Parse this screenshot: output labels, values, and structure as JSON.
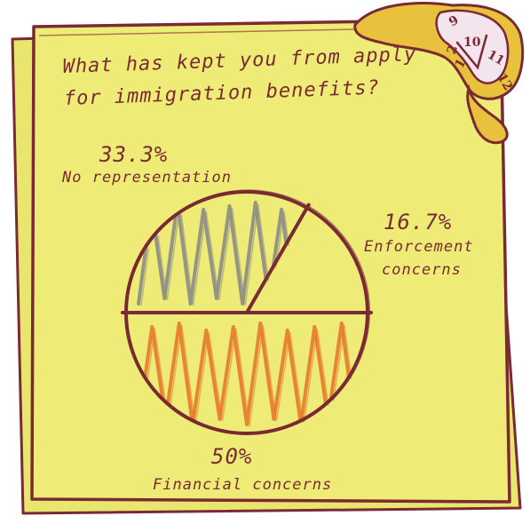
{
  "chart_data": {
    "type": "pie",
    "title": "What has kept you from apply for immigration benefits?",
    "slices": [
      {
        "label": "No representation",
        "value": 33.3,
        "value_label": "33.3%",
        "color": "#8c8c84"
      },
      {
        "label": "Enforcement concerns",
        "value": 16.7,
        "value_label": "16.7%",
        "color": "#7a2a33"
      },
      {
        "label": "Financial concerns",
        "value": 50,
        "value_label": "50%",
        "color": "#e67a2a"
      }
    ],
    "legend": "none"
  },
  "title_line1": "What has kept you from apply",
  "title_line2": "for immigration benefits?",
  "labels": {
    "no_rep_pct": "33.3%",
    "no_rep_label": "No representation",
    "enf_pct": "16.7%",
    "enf_label_1": "Enforcement",
    "enf_label_2": "concerns",
    "fin_pct": "50%",
    "fin_label": "Financial concerns"
  },
  "clock": {
    "numbers": [
      "9",
      "10",
      "11",
      "12",
      "1",
      "2"
    ]
  },
  "colors": {
    "paper": "#eeec77",
    "ink": "#7a2a33",
    "clock_gold": "#e8c23c",
    "orange": "#e67a2a",
    "gray": "#8c8c84"
  }
}
